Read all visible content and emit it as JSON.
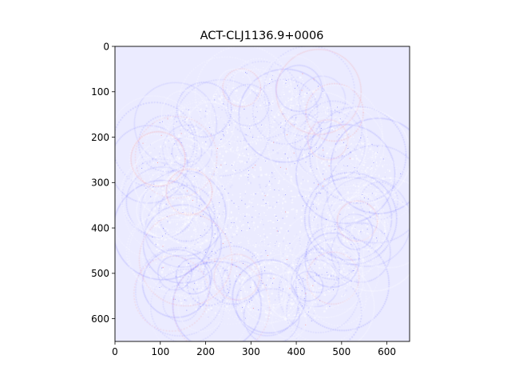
{
  "chart_data": {
    "type": "heatmap",
    "title": "ACT-CLJ1136.9+0006",
    "xlabel": "",
    "ylabel": "",
    "xlim": [
      0,
      650
    ],
    "ylim": [
      650,
      0
    ],
    "x_ticks": [
      "0",
      "100",
      "200",
      "300",
      "400",
      "500",
      "600"
    ],
    "y_ticks": [
      "0",
      "100",
      "200",
      "300",
      "400",
      "500",
      "600"
    ],
    "grid": false,
    "colormap": "bwr",
    "colors": {
      "background": "#ebebff",
      "negative": "#0000ff",
      "positive": "#ff0000",
      "neutral": "#ffffff"
    }
  }
}
